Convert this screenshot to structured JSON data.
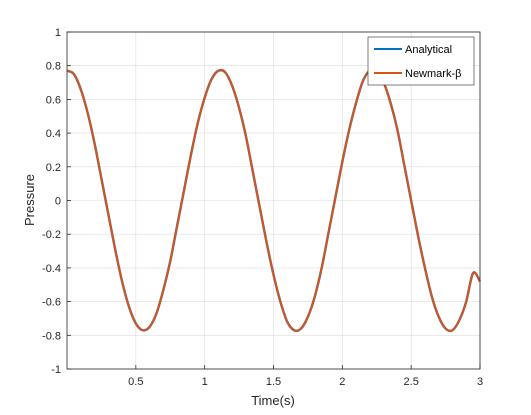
{
  "chart_data": {
    "type": "line",
    "title": "",
    "xlabel": "Time(s)",
    "ylabel": "Pressure",
    "xlim": [
      0,
      3
    ],
    "ylim": [
      -1,
      1
    ],
    "xticks": [
      0.5,
      1,
      1.5,
      2,
      2.5,
      3
    ],
    "xtick_labels": [
      "0.5",
      "1",
      "1.5",
      "2",
      "2.5",
      "3"
    ],
    "yticks": [
      1,
      0.8,
      0.6,
      0.4,
      0.2,
      0,
      -0.2,
      -0.4,
      -0.6,
      -0.8,
      -1
    ],
    "ytick_labels": [
      "1",
      "0.8",
      "0.6",
      "0.4",
      "0.2",
      "0",
      "-0.2",
      "-0.4",
      "-0.6",
      "-0.8",
      "-1"
    ],
    "grid": true,
    "legend_position": "top-right",
    "series": [
      {
        "name": "Analytical",
        "color": "#0072BD",
        "x": [
          0,
          0.05,
          0.1,
          0.15,
          0.2,
          0.25,
          0.3,
          0.35,
          0.4,
          0.45,
          0.5,
          0.55,
          0.6,
          0.65,
          0.7,
          0.75,
          0.8,
          0.85,
          0.9,
          0.95,
          1.0,
          1.05,
          1.1,
          1.15,
          1.2,
          1.25,
          1.3,
          1.35,
          1.4,
          1.45,
          1.5,
          1.55,
          1.6,
          1.65,
          1.7,
          1.75,
          1.8,
          1.85,
          1.9,
          1.95,
          2.0,
          2.05,
          2.1,
          2.15,
          2.2,
          2.25,
          2.3,
          2.35,
          2.4,
          2.45,
          2.5,
          2.55,
          2.6,
          2.65,
          2.7,
          2.75,
          2.8,
          2.85,
          2.9,
          2.95,
          3.0
        ],
        "y": [
          0.77,
          0.75,
          0.66,
          0.52,
          0.34,
          0.13,
          -0.08,
          -0.29,
          -0.48,
          -0.63,
          -0.73,
          -0.77,
          -0.75,
          -0.67,
          -0.53,
          -0.36,
          -0.15,
          0.06,
          0.27,
          0.46,
          0.61,
          0.72,
          0.77,
          0.76,
          0.68,
          0.55,
          0.38,
          0.17,
          -0.04,
          -0.25,
          -0.44,
          -0.6,
          -0.72,
          -0.77,
          -0.76,
          -0.69,
          -0.57,
          -0.4,
          -0.19,
          0.02,
          0.23,
          0.42,
          0.58,
          0.71,
          0.77,
          0.76,
          0.7,
          0.58,
          0.42,
          0.21,
          0.0,
          -0.21,
          -0.4,
          -0.57,
          -0.69,
          -0.76,
          -0.77,
          -0.71,
          -0.6,
          -0.43,
          -0.48
        ]
      },
      {
        "name": "Newmark-β",
        "color": "#D95319",
        "x": [
          0,
          0.05,
          0.1,
          0.15,
          0.2,
          0.25,
          0.3,
          0.35,
          0.4,
          0.45,
          0.5,
          0.55,
          0.6,
          0.65,
          0.7,
          0.75,
          0.8,
          0.85,
          0.9,
          0.95,
          1.0,
          1.05,
          1.1,
          1.15,
          1.2,
          1.25,
          1.3,
          1.35,
          1.4,
          1.45,
          1.5,
          1.55,
          1.6,
          1.65,
          1.7,
          1.75,
          1.8,
          1.85,
          1.9,
          1.95,
          2.0,
          2.05,
          2.1,
          2.15,
          2.2,
          2.25,
          2.3,
          2.35,
          2.4,
          2.45,
          2.5,
          2.55,
          2.6,
          2.65,
          2.7,
          2.75,
          2.8,
          2.85,
          2.9,
          2.95,
          3.0
        ],
        "y": [
          0.77,
          0.75,
          0.66,
          0.52,
          0.34,
          0.13,
          -0.08,
          -0.29,
          -0.48,
          -0.63,
          -0.73,
          -0.77,
          -0.75,
          -0.67,
          -0.53,
          -0.36,
          -0.15,
          0.06,
          0.27,
          0.46,
          0.61,
          0.72,
          0.77,
          0.76,
          0.68,
          0.55,
          0.38,
          0.17,
          -0.04,
          -0.25,
          -0.44,
          -0.6,
          -0.72,
          -0.77,
          -0.76,
          -0.69,
          -0.57,
          -0.4,
          -0.19,
          0.02,
          0.23,
          0.42,
          0.58,
          0.71,
          0.77,
          0.76,
          0.7,
          0.58,
          0.42,
          0.21,
          0.0,
          -0.21,
          -0.4,
          -0.57,
          -0.69,
          -0.76,
          -0.77,
          -0.71,
          -0.6,
          -0.43,
          -0.48
        ]
      }
    ]
  }
}
